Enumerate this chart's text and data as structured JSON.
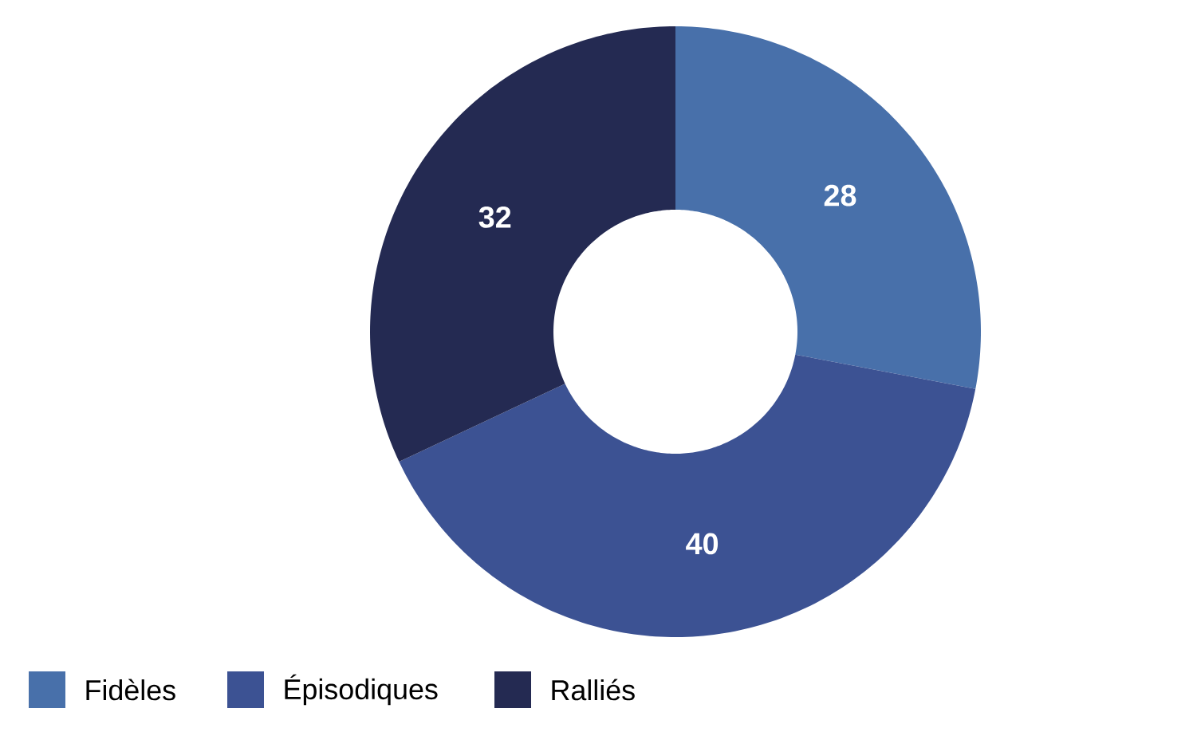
{
  "chart_data": {
    "type": "donut",
    "categories": [
      "Fidèles",
      "Épisodiques",
      "Ralliés"
    ],
    "values": [
      28,
      40,
      32
    ],
    "colors": [
      "#4870aa",
      "#3c5293",
      "#242a52"
    ],
    "data_labels": true,
    "legend": "bottom left"
  }
}
